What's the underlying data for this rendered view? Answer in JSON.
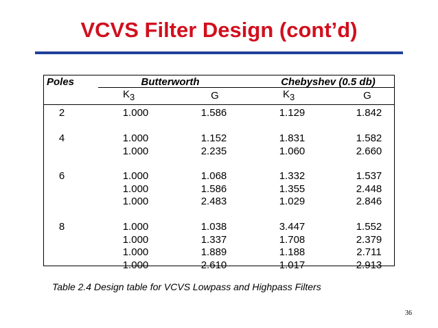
{
  "title": "VCVS Filter Design (cont’d)",
  "colors": {
    "title": "#d10f1e",
    "rule": "#1f3f9b"
  },
  "table": {
    "headers": {
      "poles": "Poles",
      "butterworth": "Butterworth",
      "chebyshev": "Chebyshev (0.5 db)",
      "k_label": "K",
      "k_sub": "3",
      "g_label": "G"
    },
    "groups": [
      {
        "poles": "2",
        "rows": [
          {
            "bw_k3": "1.000",
            "bw_g": "1.586",
            "ch_k3": "1.129",
            "ch_g": "1.842"
          }
        ]
      },
      {
        "poles": "4",
        "rows": [
          {
            "bw_k3": "1.000",
            "bw_g": "1.152",
            "ch_k3": "1.831",
            "ch_g": "1.582"
          },
          {
            "bw_k3": "1.000",
            "bw_g": "2.235",
            "ch_k3": "1.060",
            "ch_g": "2.660"
          }
        ]
      },
      {
        "poles": "6",
        "rows": [
          {
            "bw_k3": "1.000",
            "bw_g": "1.068",
            "ch_k3": "1.332",
            "ch_g": "1.537"
          },
          {
            "bw_k3": "1.000",
            "bw_g": "1.586",
            "ch_k3": "1.355",
            "ch_g": "2.448"
          },
          {
            "bw_k3": "1.000",
            "bw_g": "2.483",
            "ch_k3": "1.029",
            "ch_g": "2.846"
          }
        ]
      },
      {
        "poles": "8",
        "rows": [
          {
            "bw_k3": "1.000",
            "bw_g": "1.038",
            "ch_k3": "3.447",
            "ch_g": "1.552"
          },
          {
            "bw_k3": "1.000",
            "bw_g": "1.337",
            "ch_k3": "1.708",
            "ch_g": "2.379"
          },
          {
            "bw_k3": "1.000",
            "bw_g": "1.889",
            "ch_k3": "1.188",
            "ch_g": "2.711"
          },
          {
            "bw_k3": "1.000",
            "bw_g": "2.610",
            "ch_k3": "1.017",
            "ch_g": "2.913"
          }
        ]
      }
    ]
  },
  "caption": "Table 2.4 Design table for VCVS  Lowpass and Highpass Filters",
  "page_number": "36"
}
